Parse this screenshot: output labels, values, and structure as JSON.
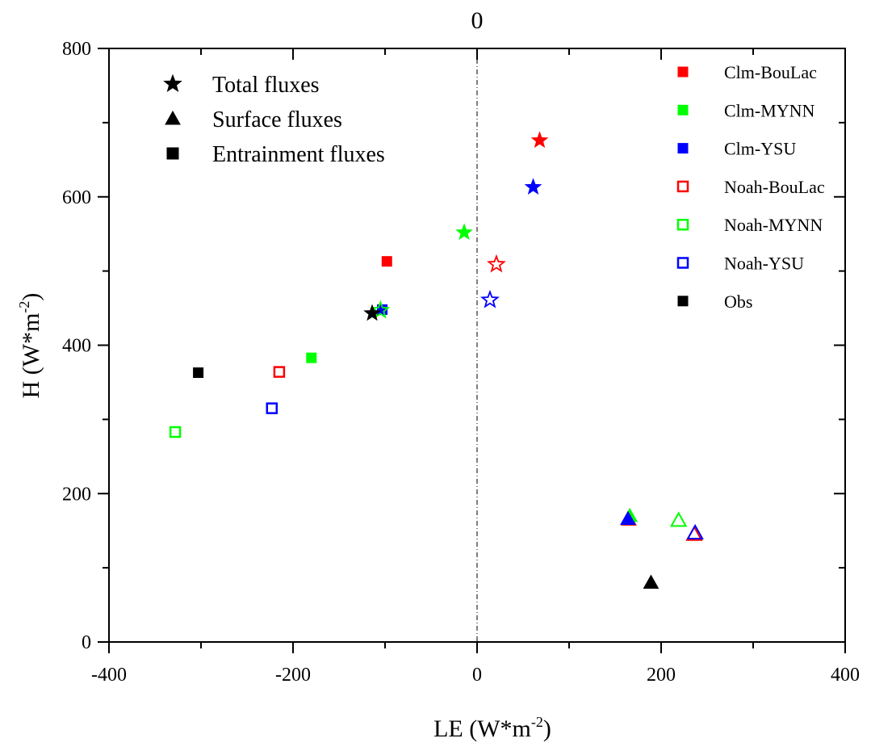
{
  "chart_data": {
    "type": "scatter",
    "top_label": "0",
    "xlabel": "LE (W*m",
    "xlabel_sup": "-2",
    "xlabel_end": ")",
    "ylabel": "H (W*m",
    "ylabel_sup": "-2",
    "ylabel_end": ")",
    "xlim": [
      -400,
      400
    ],
    "ylim": [
      0,
      800
    ],
    "x_ticks": [
      -400,
      -200,
      0,
      200,
      400
    ],
    "y_ticks": [
      0,
      200,
      400,
      600,
      800
    ],
    "x_tick_labels": [
      "-400",
      "-200",
      "0",
      "200",
      "400"
    ],
    "y_tick_labels": [
      "0",
      "200",
      "400",
      "600",
      "800"
    ],
    "reference_line": {
      "x": 0,
      "style": "dash-dot"
    },
    "grid": false,
    "flux_legend": {
      "placement": "top-left",
      "items": [
        {
          "label": "Total fluxes",
          "marker": "star"
        },
        {
          "label": "Surface fluxes",
          "marker": "triangle"
        },
        {
          "label": "Entrainment fluxes",
          "marker": "square"
        }
      ]
    },
    "series_legend_placement": "top-right",
    "series": [
      {
        "name": "Clm-BouLac",
        "color": "#ff0000",
        "fill": "filled",
        "total": [
          68,
          676
        ],
        "surface": [
          165,
          165
        ],
        "entrainment": [
          -98,
          513
        ]
      },
      {
        "name": "Clm-MYNN",
        "color": "#00ff00",
        "fill": "filled",
        "total": [
          -14,
          552
        ],
        "surface": [
          166,
          170
        ],
        "entrainment": [
          -180,
          383
        ]
      },
      {
        "name": "Clm-YSU",
        "color": "#0000ff",
        "fill": "filled",
        "total": [
          61,
          613
        ],
        "surface": [
          164,
          166
        ],
        "entrainment": [
          -103,
          448
        ]
      },
      {
        "name": "Noah-BouLac",
        "color": "#ff0000",
        "fill": "open",
        "total": [
          21,
          509
        ],
        "surface": [
          236,
          145
        ],
        "entrainment": [
          -215,
          364
        ]
      },
      {
        "name": "Noah-MYNN",
        "color": "#00ff00",
        "fill": "open",
        "total": [
          -105,
          447
        ],
        "surface": [
          219,
          164
        ],
        "entrainment": [
          -328,
          283
        ]
      },
      {
        "name": "Noah-YSU",
        "color": "#0000ff",
        "fill": "open",
        "total": [
          14,
          461
        ],
        "surface": [
          237,
          147
        ],
        "entrainment": [
          -223,
          315
        ]
      },
      {
        "name": "Obs",
        "color": "#000000",
        "fill": "filled",
        "total": [
          -114,
          443
        ],
        "surface": [
          189,
          80
        ],
        "entrainment": [
          -303,
          363
        ]
      }
    ]
  }
}
